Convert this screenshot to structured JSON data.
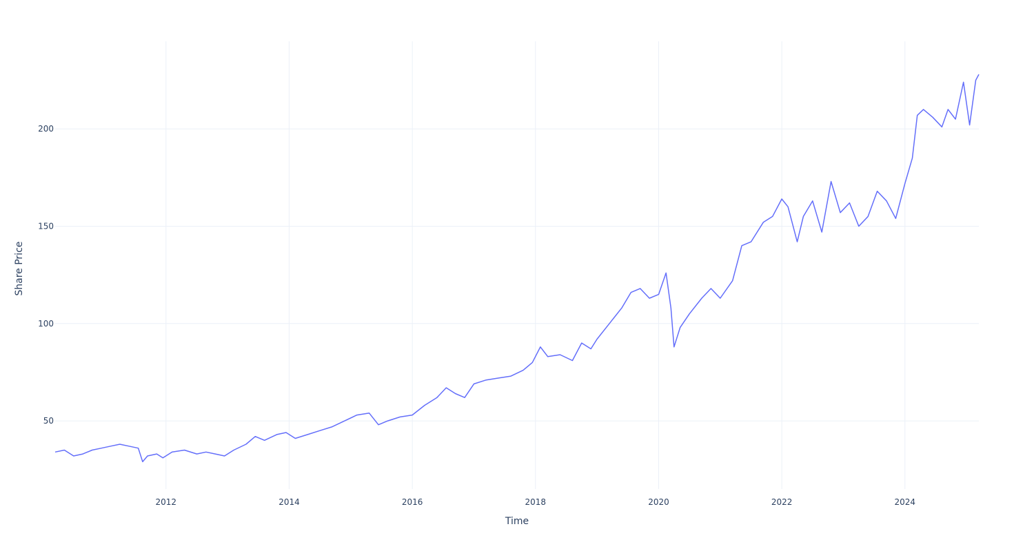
{
  "chart_data": {
    "type": "line",
    "title": "",
    "xlabel": "Time",
    "ylabel": "Share Price",
    "grid": true,
    "legend": "none",
    "line_color": "#636efa",
    "grid_color": "#ebf0f8",
    "text_color": "#2a3f5f",
    "xlim": [
      2010.2,
      2025.2
    ],
    "ylim": [
      15,
      245
    ],
    "x_ticks": [
      2012,
      2014,
      2016,
      2018,
      2020,
      2022,
      2024
    ],
    "x_tick_labels": [
      "2012",
      "2014",
      "2016",
      "2018",
      "2020",
      "2022",
      "2024"
    ],
    "y_ticks": [
      50,
      100,
      150,
      200
    ],
    "y_tick_labels": [
      "50",
      "100",
      "150",
      "200"
    ],
    "series": [
      {
        "x": [
          2010.2,
          2010.35,
          2010.5,
          2010.65,
          2010.8,
          2010.95,
          2011.1,
          2011.25,
          2011.4,
          2011.55,
          2011.62,
          2011.7,
          2011.85,
          2011.95,
          2012.1,
          2012.3,
          2012.5,
          2012.65,
          2012.8,
          2012.95,
          2013.1,
          2013.3,
          2013.45,
          2013.6,
          2013.8,
          2013.95,
          2014.1,
          2014.3,
          2014.5,
          2014.7,
          2014.9,
          2015.1,
          2015.3,
          2015.45,
          2015.6,
          2015.8,
          2016.0,
          2016.2,
          2016.4,
          2016.55,
          2016.7,
          2016.85,
          2017.0,
          2017.2,
          2017.4,
          2017.6,
          2017.8,
          2017.95,
          2018.08,
          2018.2,
          2018.4,
          2018.6,
          2018.75,
          2018.9,
          2019.0,
          2019.2,
          2019.4,
          2019.55,
          2019.7,
          2019.85,
          2020.0,
          2020.12,
          2020.2,
          2020.25,
          2020.35,
          2020.5,
          2020.7,
          2020.85,
          2021.0,
          2021.2,
          2021.35,
          2021.5,
          2021.7,
          2021.85,
          2022.0,
          2022.1,
          2022.25,
          2022.35,
          2022.5,
          2022.65,
          2022.8,
          2022.95,
          2023.1,
          2023.25,
          2023.4,
          2023.55,
          2023.7,
          2023.85,
          2024.0,
          2024.12,
          2024.2,
          2024.3,
          2024.45,
          2024.6,
          2024.7,
          2024.82,
          2024.95,
          2025.05,
          2025.15,
          2025.2
        ],
        "y": [
          34,
          35,
          32,
          33,
          35,
          36,
          37,
          38,
          37,
          36,
          29,
          32,
          33,
          31,
          34,
          35,
          33,
          34,
          33,
          32,
          35,
          38,
          42,
          40,
          43,
          44,
          41,
          43,
          45,
          47,
          50,
          53,
          54,
          48,
          50,
          52,
          53,
          58,
          62,
          67,
          64,
          62,
          69,
          71,
          72,
          73,
          76,
          80,
          88,
          83,
          84,
          81,
          90,
          87,
          92,
          100,
          108,
          116,
          118,
          113,
          115,
          126,
          108,
          88,
          98,
          105,
          113,
          118,
          113,
          122,
          140,
          142,
          152,
          155,
          164,
          160,
          142,
          155,
          163,
          147,
          173,
          157,
          162,
          150,
          155,
          168,
          163,
          154,
          172,
          185,
          207,
          210,
          206,
          201,
          210,
          205,
          224,
          202,
          225,
          228
        ]
      }
    ]
  }
}
